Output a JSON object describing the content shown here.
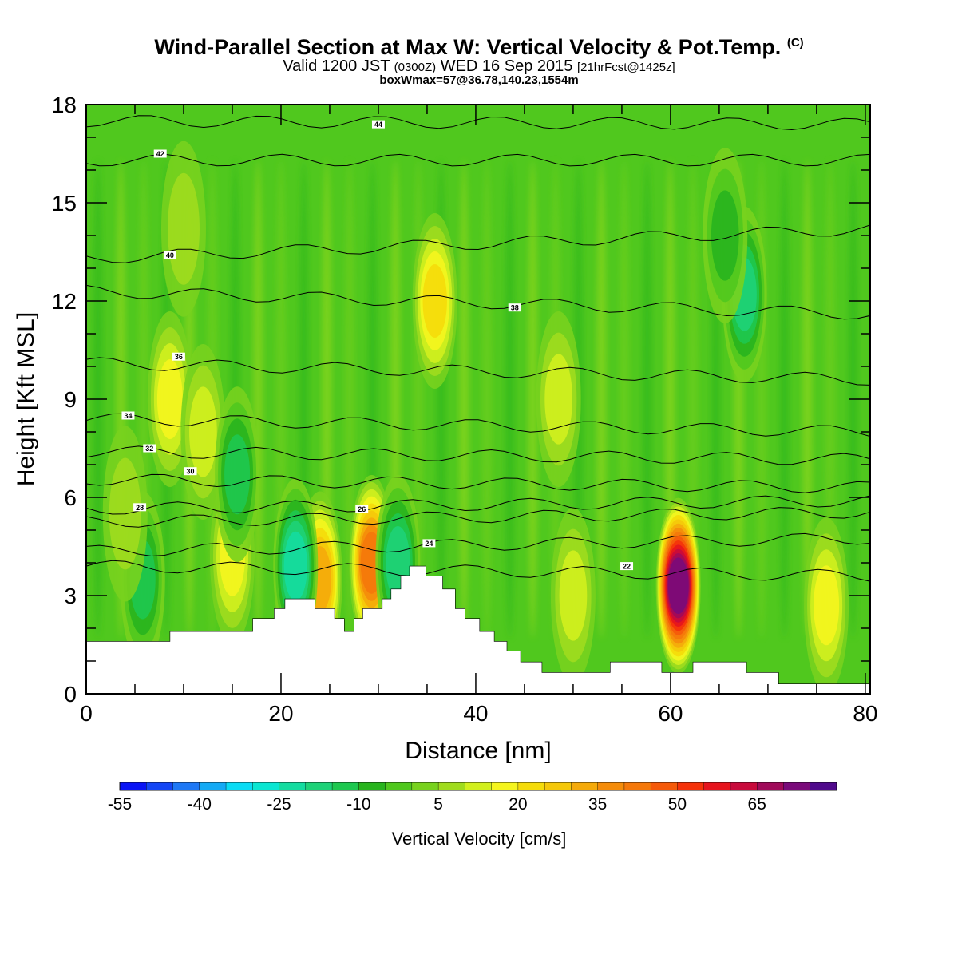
{
  "header": {
    "title": "Wind-Parallel Section at Max W: Vertical Velocity & Pot.Temp.",
    "title_mark": "(C)",
    "valid_prefix": "Valid 1200 JST",
    "valid_utc": "(0300Z)",
    "valid_date": "WED 16 Sep 2015",
    "forecast": "[21hrFcst@1425z]",
    "box_info": "boxWmax=57@36.78,140.23,1554m"
  },
  "chart_data": {
    "type": "heatmap",
    "xlabel": "Distance [nm]",
    "ylabel": "Height [Kft MSL]",
    "xlim": [
      0,
      80.5
    ],
    "ylim": [
      0,
      18
    ],
    "x_ticks": [
      "0",
      "20",
      "40",
      "60",
      "80"
    ],
    "y_ticks": [
      "0",
      "3",
      "6",
      "9",
      "12",
      "15",
      "18"
    ],
    "colorbar": {
      "title": "Vertical Velocity [cm/s]",
      "tick_labels": [
        "-55",
        "-40",
        "-25",
        "-10",
        "5",
        "20",
        "35",
        "50",
        "65"
      ],
      "min": -55,
      "max": 70,
      "step": 5,
      "colors": [
        "#0a14f5",
        "#1446f5",
        "#1e78f5",
        "#14aaf5",
        "#0adcf5",
        "#0ae6d2",
        "#14dca0",
        "#1ed278",
        "#1ec850",
        "#28b41e",
        "#50c81e",
        "#78d21e",
        "#a0dc1e",
        "#d2f01e",
        "#f5f51e",
        "#f5dc0a",
        "#f5c80a",
        "#f5aa0a",
        "#f58c0a",
        "#f5780a",
        "#f55a0a",
        "#f5320a",
        "#e6141e",
        "#c80a3c",
        "#a00a5a",
        "#7a0a7a",
        "#500a8c"
      ]
    },
    "terrain": [
      [
        0,
        1.6
      ],
      [
        8.6,
        1.6
      ],
      [
        8.6,
        1.9
      ],
      [
        17.1,
        1.9
      ],
      [
        17.1,
        2.3
      ],
      [
        19.3,
        2.3
      ],
      [
        19.3,
        2.6
      ],
      [
        20.4,
        2.6
      ],
      [
        20.4,
        2.9
      ],
      [
        23.5,
        2.9
      ],
      [
        23.5,
        2.6
      ],
      [
        25.5,
        2.6
      ],
      [
        25.5,
        2.3
      ],
      [
        26.5,
        2.3
      ],
      [
        26.5,
        1.9
      ],
      [
        27.5,
        1.9
      ],
      [
        27.5,
        2.3
      ],
      [
        28.4,
        2.3
      ],
      [
        28.4,
        2.6
      ],
      [
        30.4,
        2.6
      ],
      [
        30.4,
        2.9
      ],
      [
        31.3,
        2.9
      ],
      [
        31.3,
        3.2
      ],
      [
        32.3,
        3.2
      ],
      [
        32.3,
        3.6
      ],
      [
        33.2,
        3.6
      ],
      [
        33.2,
        3.9
      ],
      [
        34.9,
        3.9
      ],
      [
        34.9,
        3.6
      ],
      [
        36.6,
        3.6
      ],
      [
        36.6,
        3.2
      ],
      [
        37.9,
        3.2
      ],
      [
        37.9,
        2.6
      ],
      [
        38.9,
        2.6
      ],
      [
        38.9,
        2.3
      ],
      [
        40.4,
        2.3
      ],
      [
        40.4,
        1.9
      ],
      [
        41.9,
        1.9
      ],
      [
        41.9,
        1.6
      ],
      [
        43.2,
        1.6
      ],
      [
        43.2,
        1.3
      ],
      [
        44.6,
        1.3
      ],
      [
        44.6,
        0.97
      ],
      [
        46.8,
        0.97
      ],
      [
        46.8,
        0.65
      ],
      [
        53.8,
        0.65
      ],
      [
        53.8,
        0.97
      ],
      [
        59.1,
        0.97
      ],
      [
        59.1,
        0.65
      ],
      [
        62.3,
        0.65
      ],
      [
        62.3,
        0.97
      ],
      [
        67.8,
        0.97
      ],
      [
        67.8,
        0.65
      ],
      [
        71.1,
        0.65
      ],
      [
        71.1,
        0.3
      ],
      [
        80.5,
        0.3
      ]
    ],
    "w_cells": [
      {
        "x": 60.8,
        "z": 3.3,
        "w": 65
      },
      {
        "x": 60.8,
        "z": 3.3,
        "w": 70
      },
      {
        "x": 29.3,
        "z": 4.0,
        "w": 40
      },
      {
        "x": 35.8,
        "z": 12.0,
        "w": 20
      },
      {
        "x": 24.0,
        "z": 3.5,
        "w": 30
      },
      {
        "x": 15.0,
        "z": 4.2,
        "w": 15
      },
      {
        "x": 21.5,
        "z": 3.9,
        "w": -25
      },
      {
        "x": 32.0,
        "z": 4.0,
        "w": -20
      },
      {
        "x": 67.6,
        "z": 12.2,
        "w": -20
      },
      {
        "x": 76.0,
        "z": 2.7,
        "w": 15
      },
      {
        "x": 50.0,
        "z": 3.0,
        "w": 10
      },
      {
        "x": 8.6,
        "z": 9.0,
        "w": 15
      },
      {
        "x": 12.0,
        "z": 8.0,
        "w": 10
      },
      {
        "x": 48.5,
        "z": 9.0,
        "w": 10
      },
      {
        "x": 15.5,
        "z": 6.7,
        "w": -15
      },
      {
        "x": 5.8,
        "z": 3.5,
        "w": -15
      },
      {
        "x": 65.6,
        "z": 14.0,
        "w": -10
      },
      {
        "x": 10.0,
        "z": 14.2,
        "w": 0
      },
      {
        "x": 4.0,
        "z": 5.5,
        "w": 5
      }
    ],
    "isentropes": [
      {
        "label": "22",
        "z0": 3.9,
        "z1": 3.6,
        "lx": 55.5,
        "lz": 3.9
      },
      {
        "label": "24",
        "z0": 4.35,
        "z1": 4.75,
        "lx": 35.2,
        "lz": 4.6
      },
      {
        "label": "26",
        "z0": 5.25,
        "z1": 5.55,
        "lx": 28.3,
        "lz": 5.65
      },
      {
        "label": "28",
        "z0": 5.65,
        "z1": 5.9,
        "lx": 5.5,
        "lz": 5.7
      },
      {
        "label": "30",
        "z0": 6.55,
        "z1": 6.3,
        "lx": 10.7,
        "lz": 6.8
      },
      {
        "label": "32",
        "z0": 7.4,
        "z1": 7.15,
        "lx": 6.5,
        "lz": 7.5
      },
      {
        "label": "34",
        "z0": 8.4,
        "z1": 8.0,
        "lx": 4.3,
        "lz": 8.5
      },
      {
        "label": "36",
        "z0": 10.1,
        "z1": 9.6,
        "lx": 9.5,
        "lz": 10.3
      },
      {
        "label": "38",
        "z0": 12.3,
        "z1": 11.6,
        "lx": 44.0,
        "lz": 11.8
      },
      {
        "label": "40",
        "z0": 13.3,
        "z1": 14.2,
        "lx": 8.6,
        "lz": 13.4
      },
      {
        "label": "42",
        "z0": 16.3,
        "z1": 16.3,
        "lx": 7.6,
        "lz": 16.5
      },
      {
        "label": "44",
        "z0": 17.5,
        "z1": 17.4,
        "lx": 30.0,
        "lz": 17.4
      }
    ]
  }
}
